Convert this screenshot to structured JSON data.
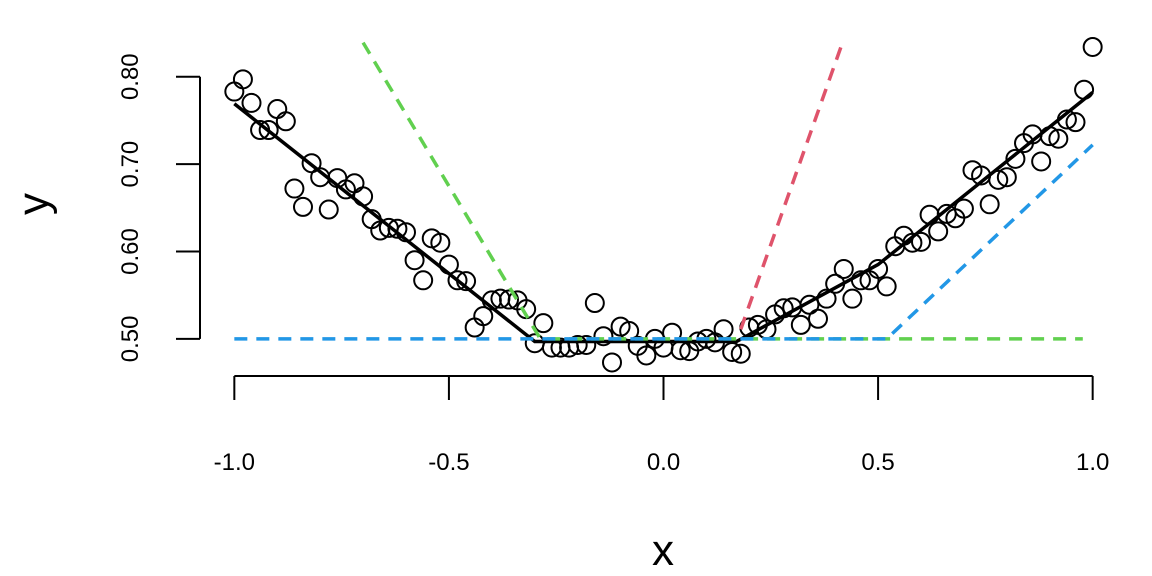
{
  "chart_data": {
    "type": "scatter",
    "x_label": "x",
    "y_label": "y",
    "xlim": [
      -1.08,
      1.08
    ],
    "ylim": [
      0.4575,
      0.85
    ],
    "xticks": [
      {
        "value": -1.0,
        "label": "-1.0"
      },
      -0.5,
      {
        "value": 0,
        "label": "0.0"
      },
      0.5,
      {
        "value": 1.0,
        "label": "1.0"
      }
    ],
    "yticks": [
      {
        "value": 0.5,
        "label": "0.50"
      },
      {
        "value": 0.6,
        "label": "0.60"
      },
      {
        "value": 0.7,
        "label": "0.70"
      },
      {
        "value": 0.8,
        "label": "0.80"
      }
    ],
    "series": [
      {
        "type": "points",
        "color": "#000000",
        "x": [
          -1.0,
          -0.98,
          -0.96,
          -0.94,
          -0.92,
          -0.9,
          -0.88,
          -0.86,
          -0.84,
          -0.82,
          -0.8,
          -0.78,
          -0.76,
          -0.74,
          -0.72,
          -0.7,
          -0.68,
          -0.66,
          -0.64,
          -0.62,
          -0.6,
          -0.58,
          -0.56,
          -0.54,
          -0.52,
          -0.5,
          -0.48,
          -0.46,
          -0.44,
          -0.42,
          -0.4,
          -0.38,
          -0.36,
          -0.34,
          -0.32,
          -0.3,
          -0.28,
          -0.26,
          -0.24,
          -0.22,
          -0.2,
          -0.18,
          -0.16,
          -0.14,
          -0.12,
          -0.1,
          -0.08,
          -0.06,
          -0.04,
          -0.02,
          0.0,
          0.02,
          0.04,
          0.06,
          0.08,
          0.1,
          0.12,
          0.14,
          0.16,
          0.18,
          0.2,
          0.22,
          0.24,
          0.26,
          0.28,
          0.3,
          0.32,
          0.34,
          0.36,
          0.38,
          0.4,
          0.42,
          0.44,
          0.46,
          0.48,
          0.5,
          0.52,
          0.54,
          0.56,
          0.58,
          0.6,
          0.62,
          0.64,
          0.66,
          0.68,
          0.7,
          0.72,
          0.74,
          0.76,
          0.78,
          0.8,
          0.82,
          0.84,
          0.86,
          0.88,
          0.9,
          0.92,
          0.94,
          0.96,
          0.98,
          1.0
        ],
        "y": [
          0.783,
          0.797,
          0.77,
          0.739,
          0.739,
          0.763,
          0.749,
          0.672,
          0.651,
          0.701,
          0.685,
          0.648,
          0.684,
          0.671,
          0.678,
          0.663,
          0.637,
          0.624,
          0.627,
          0.626,
          0.622,
          0.59,
          0.567,
          0.615,
          0.61,
          0.585,
          0.567,
          0.566,
          0.513,
          0.526,
          0.544,
          0.546,
          0.545,
          0.544,
          0.534,
          0.495,
          0.518,
          0.49,
          0.49,
          0.49,
          0.493,
          0.493,
          0.541,
          0.503,
          0.473,
          0.514,
          0.509,
          0.492,
          0.481,
          0.5,
          0.49,
          0.507,
          0.487,
          0.486,
          0.497,
          0.5,
          0.496,
          0.511,
          0.485,
          0.483,
          0.513,
          0.516,
          0.511,
          0.528,
          0.535,
          0.536,
          0.516,
          0.539,
          0.523,
          0.546,
          0.563,
          0.58,
          0.546,
          0.567,
          0.567,
          0.58,
          0.56,
          0.606,
          0.618,
          0.61,
          0.611,
          0.642,
          0.623,
          0.643,
          0.638,
          0.649,
          0.693,
          0.687,
          0.654,
          0.682,
          0.685,
          0.706,
          0.724,
          0.734,
          0.703,
          0.732,
          0.729,
          0.751,
          0.748,
          0.785,
          0.834
        ]
      },
      {
        "type": "line",
        "color": "#000000",
        "style": "solid",
        "x": [
          -1.0,
          -0.3,
          0.17,
          0.5,
          1.0
        ],
        "y": [
          0.769,
          0.497,
          0.497,
          0.585,
          0.782
        ]
      },
      {
        "type": "line",
        "color": "#61d04f",
        "style": "dashed",
        "x": [
          -0.7,
          -0.287,
          0.977
        ],
        "y": [
          0.839,
          0.5,
          0.5
        ]
      },
      {
        "type": "line",
        "color": "#df536b",
        "style": "dashed",
        "x": [
          0.18,
          0.42
        ],
        "y": [
          0.511,
          0.843
        ]
      },
      {
        "type": "line",
        "color": "#2297e6",
        "style": "dashed",
        "x": [
          -1.0,
          0.52,
          1.0
        ],
        "y": [
          0.5,
          0.5,
          0.722
        ]
      }
    ]
  }
}
